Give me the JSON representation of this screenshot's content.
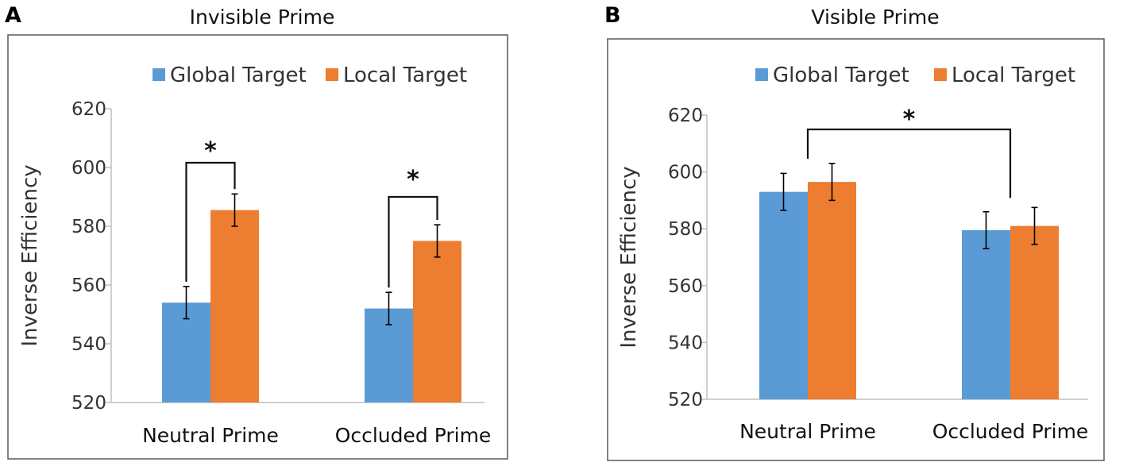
{
  "colors": {
    "global": "#5b9bd5",
    "local": "#ed7d31",
    "axis": "#bfbfbf",
    "text": "#333333",
    "frame": "#595959",
    "annotation": "#111111"
  },
  "chart_data": [
    {
      "panel_label": "A",
      "title": "Invisible Prime",
      "type": "bar",
      "xlabel": "",
      "ylabel": "Inverse Efficiency",
      "ylim": [
        520,
        620
      ],
      "yticks": [
        "520",
        "540",
        "560",
        "580",
        "600",
        "620"
      ],
      "categories": [
        "Neutral Prime",
        "Occluded Prime"
      ],
      "legend_position": "top",
      "series": [
        {
          "name": "Global Target",
          "values": [
            554,
            552
          ],
          "errors": [
            5.5,
            5.5
          ]
        },
        {
          "name": "Local Target",
          "values": [
            585.5,
            575
          ],
          "errors": [
            5.5,
            5.5
          ]
        }
      ],
      "annotations": [
        {
          "text": "*",
          "type": "within-category",
          "category": "Neutral Prime"
        },
        {
          "text": "*",
          "type": "within-category",
          "category": "Occluded Prime"
        }
      ]
    },
    {
      "panel_label": "B",
      "title": "Visible Prime",
      "type": "bar",
      "xlabel": "",
      "ylabel": "Inverse Efficiency",
      "ylim": [
        520,
        620
      ],
      "yticks": [
        "520",
        "540",
        "560",
        "580",
        "600",
        "620"
      ],
      "categories": [
        "Neutral Prime",
        "Occluded Prime"
      ],
      "legend_position": "top",
      "series": [
        {
          "name": "Global Target",
          "values": [
            593,
            579.5
          ],
          "errors": [
            6.5,
            6.5
          ]
        },
        {
          "name": "Local Target",
          "values": [
            596.5,
            581
          ],
          "errors": [
            6.5,
            6.5
          ]
        }
      ],
      "annotations": [
        {
          "text": "*",
          "type": "between-categories",
          "from": "Neutral Prime",
          "to": "Occluded Prime"
        }
      ]
    }
  ]
}
